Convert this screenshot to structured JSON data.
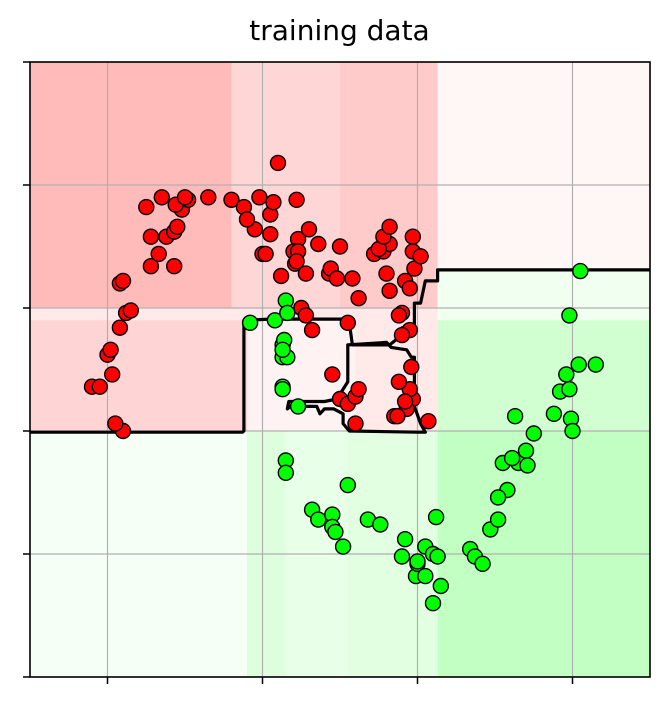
{
  "chart_data": {
    "type": "scatter",
    "title": "training data",
    "xlabel": "",
    "ylabel": "",
    "xlim": [
      -1.5,
      2.5
    ],
    "ylim": [
      -1.0,
      1.5
    ],
    "xticks": [
      -1,
      0,
      1,
      2
    ],
    "yticks": [
      -1.0,
      -0.5,
      0.0,
      0.5,
      1.0,
      1.5
    ],
    "tick_labels_visible": false,
    "grid": true,
    "colors": {
      "class_red": "#ff0000",
      "class_green": "#00ff00",
      "marker_edge": "#000000",
      "boundary": "#000000",
      "region_red_strong": "#ffbdbd",
      "region_green_strong": "#bdffbd"
    },
    "series": [
      {
        "class": "red",
        "points": [
          [
            -0.9,
            0.0
          ],
          [
            -0.95,
            0.03
          ],
          [
            -1.1,
            0.18
          ],
          [
            -1.05,
            0.18
          ],
          [
            -0.97,
            0.23
          ],
          [
            -1.0,
            0.31
          ],
          [
            -0.98,
            0.33
          ],
          [
            -0.92,
            0.42
          ],
          [
            -0.88,
            0.48
          ],
          [
            -0.85,
            0.49
          ],
          [
            -0.92,
            0.6
          ],
          [
            -0.9,
            0.61
          ],
          [
            -0.72,
            0.67
          ],
          [
            -0.57,
            0.67
          ],
          [
            -0.67,
            0.72
          ],
          [
            -0.72,
            0.79
          ],
          [
            -0.62,
            0.79
          ],
          [
            -0.57,
            0.81
          ],
          [
            -0.55,
            0.83
          ],
          [
            -0.52,
            0.9
          ],
          [
            -0.75,
            0.91
          ],
          [
            -0.56,
            0.92
          ],
          [
            -0.48,
            0.94
          ],
          [
            -0.5,
            0.95
          ],
          [
            -0.65,
            0.95
          ],
          [
            -0.35,
            0.95
          ],
          [
            -0.2,
            0.94
          ],
          [
            -0.12,
            0.91
          ],
          [
            -0.02,
            0.95
          ],
          [
            0.22,
            0.94
          ],
          [
            -0.05,
            0.82
          ],
          [
            -0.1,
            0.86
          ],
          [
            0.05,
            0.8
          ],
          [
            0.05,
            0.88
          ],
          [
            0.23,
            0.78
          ],
          [
            0.2,
            0.73
          ],
          [
            0.23,
            0.73
          ],
          [
            0.0,
            0.72
          ],
          [
            0.07,
            0.93
          ],
          [
            0.1,
            1.09
          ],
          [
            0.21,
            0.68
          ],
          [
            0.43,
            0.64
          ],
          [
            0.5,
            0.75
          ],
          [
            0.58,
            0.62
          ],
          [
            0.92,
            0.61
          ],
          [
            0.97,
            0.73
          ],
          [
            0.22,
            0.69
          ],
          [
            0.28,
            0.64
          ],
          [
            0.12,
            0.63
          ],
          [
            0.44,
            0.66
          ],
          [
            0.48,
            0.62
          ],
          [
            0.72,
            0.72
          ],
          [
            0.78,
            0.73
          ],
          [
            0.82,
            0.76
          ],
          [
            0.8,
            0.64
          ],
          [
            0.3,
            0.82
          ],
          [
            0.36,
            0.76
          ],
          [
            0.55,
            0.44
          ],
          [
            0.62,
            0.54
          ],
          [
            0.9,
            0.48
          ],
          [
            0.97,
            0.13
          ],
          [
            0.95,
            0.41
          ],
          [
            0.97,
            0.79
          ],
          [
            0.02,
            0.72
          ],
          [
            0.93,
            0.09
          ],
          [
            0.9,
            0.39
          ],
          [
            0.95,
            0.17
          ],
          [
            0.95,
            0.58
          ],
          [
            0.88,
            0.47
          ],
          [
            0.25,
            0.5
          ],
          [
            0.32,
            0.41
          ],
          [
            0.5,
            0.13
          ],
          [
            0.55,
            0.11
          ],
          [
            0.45,
            0.23
          ],
          [
            0.6,
            0.03
          ],
          [
            0.6,
            0.14
          ],
          [
            0.62,
            0.17
          ],
          [
            0.28,
            0.47
          ],
          [
            0.85,
            0.06
          ],
          [
            0.92,
            0.12
          ],
          [
            0.98,
            0.66
          ],
          [
            0.75,
            0.74
          ],
          [
            0.78,
            0.79
          ],
          [
            0.82,
            0.57
          ],
          [
            0.82,
            0.83
          ],
          [
            1.02,
            0.71
          ],
          [
            0.88,
            0.2
          ],
          [
            0.96,
            0.26
          ],
          [
            1.07,
            0.04
          ],
          [
            0.87,
            0.06
          ]
        ]
      },
      {
        "class": "green",
        "points": [
          [
            0.15,
            0.53
          ],
          [
            -0.08,
            0.44
          ],
          [
            0.08,
            0.45
          ],
          [
            0.16,
            0.48
          ],
          [
            0.13,
            0.3
          ],
          [
            0.23,
            0.1
          ],
          [
            0.13,
            0.35
          ],
          [
            0.16,
            0.3
          ],
          [
            0.14,
            0.37
          ],
          [
            0.13,
            0.18
          ],
          [
            0.13,
            0.17
          ],
          [
            0.13,
            0.33
          ],
          [
            0.15,
            -0.12
          ],
          [
            0.15,
            -0.17
          ],
          [
            0.32,
            -0.32
          ],
          [
            0.36,
            -0.36
          ],
          [
            0.45,
            -0.34
          ],
          [
            0.45,
            -0.39
          ],
          [
            0.47,
            -0.41
          ],
          [
            0.52,
            -0.47
          ],
          [
            0.55,
            -0.22
          ],
          [
            0.68,
            -0.36
          ],
          [
            0.76,
            -0.38
          ],
          [
            0.9,
            -0.51
          ],
          [
            0.92,
            -0.44
          ],
          [
            0.99,
            -0.59
          ],
          [
            1.0,
            -0.54
          ],
          [
            1.05,
            -0.47
          ],
          [
            1.12,
            -0.35
          ],
          [
            1.1,
            -0.5
          ],
          [
            1.13,
            -0.51
          ],
          [
            1.34,
            -0.48
          ],
          [
            1.37,
            -0.51
          ],
          [
            1.42,
            -0.54
          ],
          [
            1.47,
            -0.4
          ],
          [
            1.52,
            -0.36
          ],
          [
            1.55,
            -0.13
          ],
          [
            1.58,
            -0.24
          ],
          [
            1.65,
            -0.13
          ],
          [
            1.7,
            -0.08
          ],
          [
            1.75,
            -0.01
          ],
          [
            1.88,
            0.07
          ],
          [
            1.92,
            0.16
          ],
          [
            1.96,
            0.23
          ],
          [
            1.99,
            0.05
          ],
          [
            2.0,
            -0.0
          ],
          [
            1.98,
            0.17
          ],
          [
            2.04,
            0.27
          ],
          [
            2.15,
            0.27
          ],
          [
            2.05,
            0.65
          ],
          [
            1.98,
            0.47
          ],
          [
            1.63,
            0.06
          ],
          [
            1.61,
            -0.11
          ],
          [
            1.71,
            -0.14
          ],
          [
            1.52,
            -0.27
          ],
          [
            1.0,
            -0.53
          ],
          [
            1.05,
            -0.59
          ],
          [
            1.1,
            -0.7
          ],
          [
            1.15,
            -0.63
          ]
        ]
      }
    ]
  }
}
